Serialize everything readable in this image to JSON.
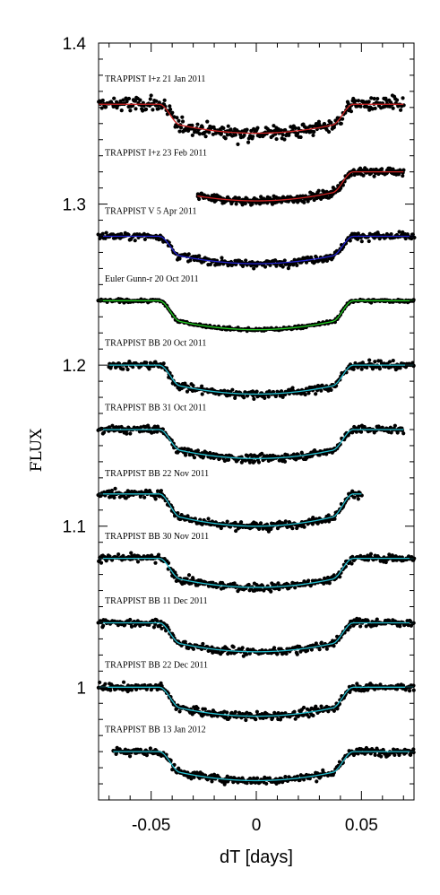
{
  "chart_data": {
    "type": "scatter",
    "xlabel": "dT [days]",
    "ylabel": "FLUX",
    "xlim": [
      -0.075,
      0.075
    ],
    "ylim": [
      0.93,
      1.4
    ],
    "x_ticks": [
      -0.05,
      0,
      0.05
    ],
    "x_tick_labels": [
      "-0.05",
      "0",
      "0.05"
    ],
    "y_ticks": [
      1,
      1.1,
      1.2,
      1.3,
      1.4
    ],
    "y_tick_labels": [
      "1",
      "1.1",
      "1.2",
      "1.3",
      "1.4"
    ],
    "grid": false,
    "legend": "none",
    "point_color": "#000000",
    "series": [
      {
        "name": "TRAPPIST I+z 21 Jan 2011",
        "label_y": 1.376,
        "baseline": 1.362,
        "depth": 0.018,
        "x_start": -0.075,
        "x_end": 0.07,
        "scatter": 0.006,
        "fit_color": "#cc2222"
      },
      {
        "name": "TRAPPIST I+z 23 Feb 2011",
        "label_y": 1.33,
        "baseline": 1.32,
        "depth": 0.018,
        "x_start": -0.028,
        "x_end": 0.07,
        "scatter": 0.003,
        "fit_color": "#cc2222"
      },
      {
        "name": "TRAPPIST V 5 Apr 2011",
        "label_y": 1.294,
        "baseline": 1.28,
        "depth": 0.017,
        "x_start": -0.075,
        "x_end": 0.075,
        "scatter": 0.003,
        "fit_color": "#2222cc"
      },
      {
        "name": "Euler Gunn-r 20 Oct 2011",
        "label_y": 1.252,
        "baseline": 1.24,
        "depth": 0.018,
        "x_start": -0.075,
        "x_end": 0.075,
        "scatter": 0.0012,
        "fit_color": "#22cc22"
      },
      {
        "name": "TRAPPIST BB 20 Oct 2011",
        "label_y": 1.212,
        "baseline": 1.2,
        "depth": 0.018,
        "x_start": -0.07,
        "x_end": 0.075,
        "scatter": 0.003,
        "fit_color": "#22bbcc"
      },
      {
        "name": "TRAPPIST BB 31 Oct 2011",
        "label_y": 1.172,
        "baseline": 1.16,
        "depth": 0.018,
        "x_start": -0.075,
        "x_end": 0.07,
        "scatter": 0.003,
        "fit_color": "#22bbcc"
      },
      {
        "name": "TRAPPIST BB 22 Nov 2011",
        "label_y": 1.131,
        "baseline": 1.12,
        "depth": 0.02,
        "x_start": -0.075,
        "x_end": 0.05,
        "scatter": 0.003,
        "fit_color": "#22bbcc"
      },
      {
        "name": "TRAPPIST BB 30 Nov 2011",
        "label_y": 1.092,
        "baseline": 1.08,
        "depth": 0.018,
        "x_start": -0.075,
        "x_end": 0.075,
        "scatter": 0.003,
        "fit_color": "#22bbcc"
      },
      {
        "name": "TRAPPIST BB 11 Dec 2011",
        "label_y": 1.052,
        "baseline": 1.04,
        "depth": 0.018,
        "x_start": -0.075,
        "x_end": 0.075,
        "scatter": 0.003,
        "fit_color": "#22bbcc"
      },
      {
        "name": "TRAPPIST BB 22 Dec 2011",
        "label_y": 1.012,
        "baseline": 1.0,
        "depth": 0.018,
        "x_start": -0.075,
        "x_end": 0.075,
        "scatter": 0.003,
        "fit_color": "#22bbcc"
      },
      {
        "name": "TRAPPIST BB 13 Jan 2012",
        "label_y": 0.972,
        "baseline": 0.96,
        "depth": 0.018,
        "x_start": -0.068,
        "x_end": 0.075,
        "scatter": 0.003,
        "fit_color": "#22bbcc"
      }
    ]
  }
}
